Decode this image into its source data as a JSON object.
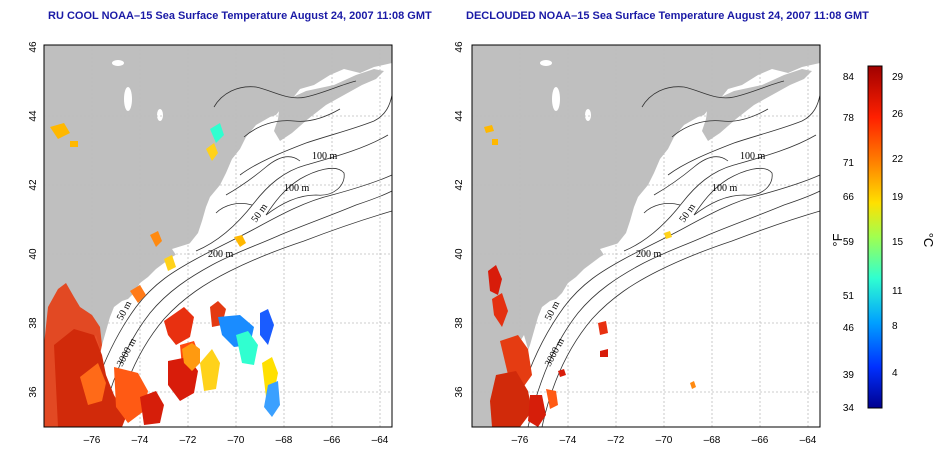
{
  "left_panel": {
    "title": "RU COOL NOAA–15 Sea Surface Temperature August 24, 2007 11:08 GMT",
    "contour_labels": [
      "100 m",
      "100 m",
      "50 m",
      "200 m",
      "50 m",
      "3000 m"
    ]
  },
  "right_panel": {
    "title": "DECLOUDED NOAA–15 Sea Surface Temperature August 24, 2007 11:08 GMT",
    "contour_labels": [
      "100 m",
      "100 m",
      "50 m",
      "200 m",
      "50 m",
      "3000 m"
    ]
  },
  "axes": {
    "lon_ticks": [
      "–76",
      "–74",
      "–72",
      "–70",
      "–68",
      "–66",
      "–64"
    ],
    "lat_ticks": [
      "36",
      "38",
      "40",
      "42",
      "44",
      "46"
    ]
  },
  "colorbar": {
    "f_label": "°F",
    "c_label": "°C",
    "f_ticks": [
      "84",
      "78",
      "71",
      "66",
      "59",
      "51",
      "46",
      "39",
      "34"
    ],
    "c_ticks": [
      "29",
      "26",
      "22",
      "19",
      "15",
      "11",
      "8",
      "4"
    ],
    "colors": [
      "#00008f",
      "#0030ff",
      "#00a0ff",
      "#30ffd0",
      "#a0ff50",
      "#ffe000",
      "#ff8000",
      "#ff2000",
      "#a00000"
    ]
  },
  "colors": {
    "land": "#bfbfbf",
    "ocean": "#ffffff",
    "grid": "#bdbdbd",
    "title": "#1a1aa6"
  }
}
